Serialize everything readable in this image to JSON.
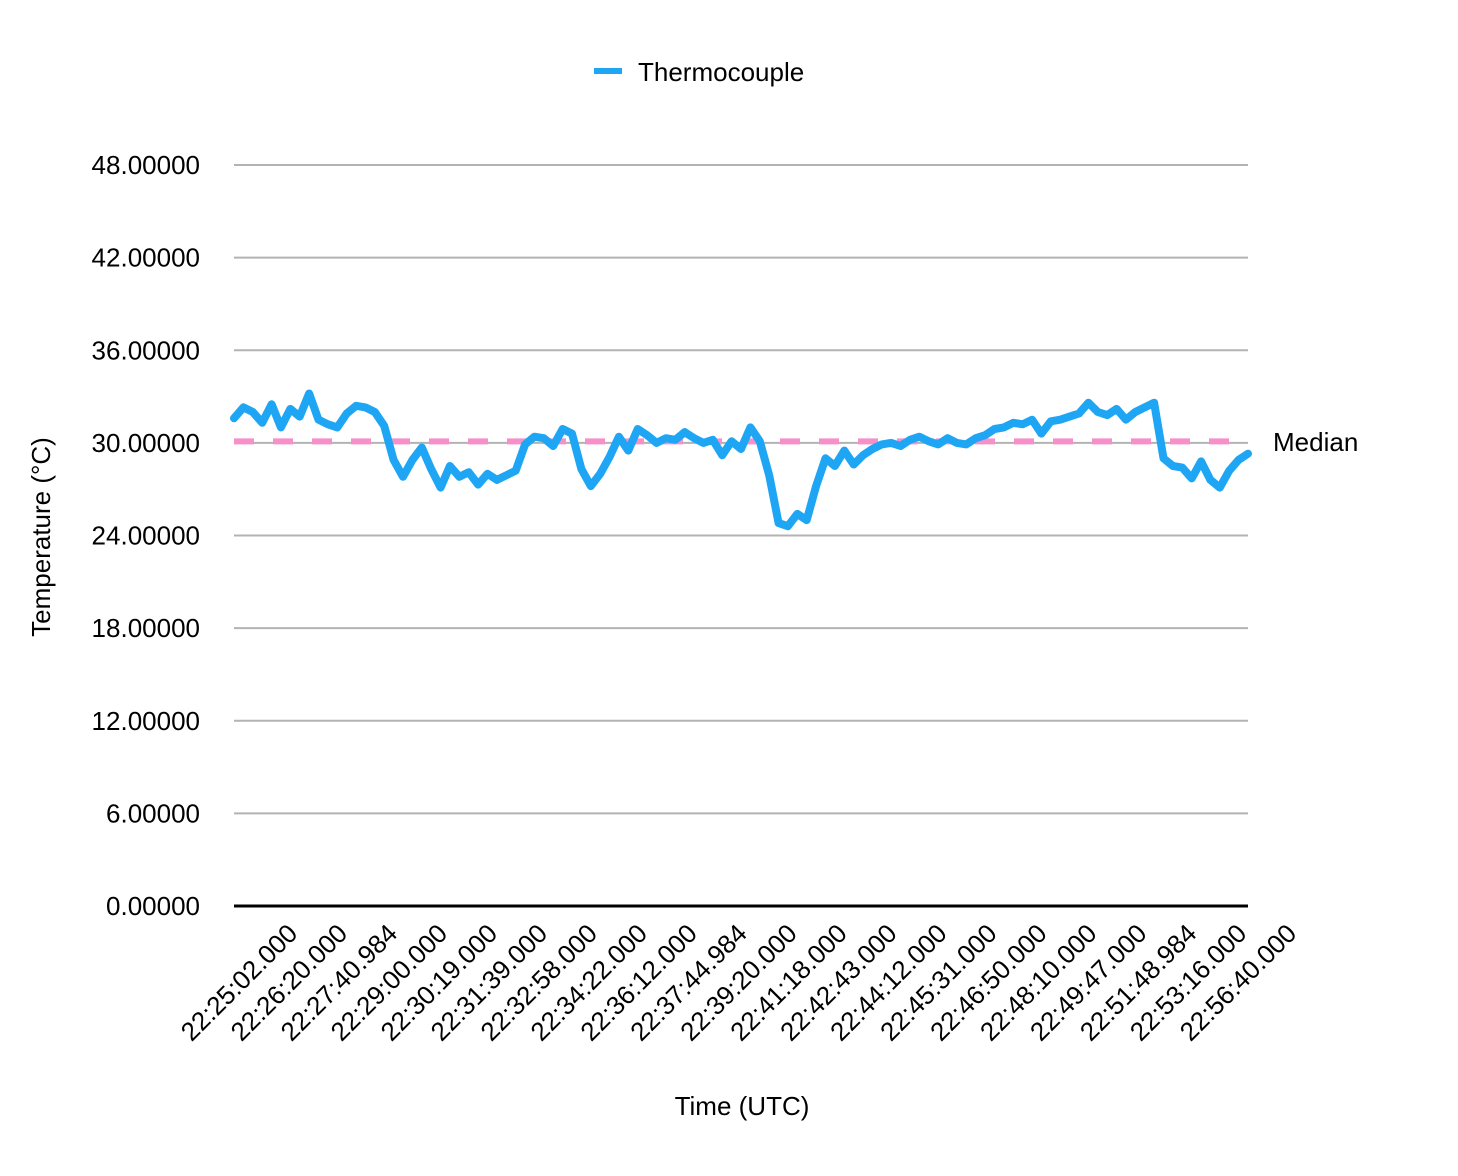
{
  "chart_data": {
    "type": "line",
    "title": "",
    "xlabel": "Time (UTC)",
    "ylabel": "Temperature (°C)",
    "ylim": [
      0,
      48
    ],
    "yticks": [
      "0.00000",
      "6.00000",
      "12.00000",
      "18.00000",
      "24.00000",
      "30.00000",
      "36.00000",
      "42.00000",
      "48.00000"
    ],
    "ytick_values": [
      0,
      6,
      12,
      18,
      24,
      30,
      36,
      42,
      48
    ],
    "xtick_labels": [
      "22:25:02.000",
      "22:26:20.000",
      "22:27:40.984",
      "22:29:00.000",
      "22:30:19.000",
      "22:31:39.000",
      "22:32:58.000",
      "22:34:22.000",
      "22:36:12.000",
      "22:37:44.984",
      "22:39:20.000",
      "22:41:18.000",
      "22:42:43.000",
      "22:44:12.000",
      "22:45:31.000",
      "22:46:50.000",
      "22:48:10.000",
      "22:49:47.000",
      "22:51:48.984",
      "22:53:16.000",
      "22:56:40.000"
    ],
    "grid": true,
    "legend": "top-center",
    "series": [
      {
        "name": "Thermocouple",
        "color": "#1EA6F5",
        "values": [
          31.6,
          32.3,
          32.0,
          31.3,
          32.5,
          31.0,
          32.2,
          31.7,
          33.2,
          31.5,
          31.2,
          31.0,
          31.9,
          32.4,
          32.3,
          32.0,
          31.1,
          28.9,
          27.8,
          28.9,
          29.7,
          28.3,
          27.1,
          28.5,
          27.8,
          28.1,
          27.3,
          28.0,
          27.6,
          27.9,
          28.2,
          29.9,
          30.4,
          30.3,
          29.8,
          30.9,
          30.6,
          28.3,
          27.2,
          28.0,
          29.1,
          30.4,
          29.5,
          30.9,
          30.5,
          30.0,
          30.3,
          30.2,
          30.7,
          30.3,
          30.0,
          30.2,
          29.2,
          30.1,
          29.6,
          31.0,
          30.1,
          27.9,
          24.8,
          24.6,
          25.4,
          25.0,
          27.2,
          29.0,
          28.5,
          29.5,
          28.6,
          29.2,
          29.6,
          29.9,
          30.0,
          29.8,
          30.2,
          30.4,
          30.1,
          29.9,
          30.3,
          30.0,
          29.9,
          30.3,
          30.5,
          30.9,
          31.0,
          31.3,
          31.2,
          31.5,
          30.6,
          31.4,
          31.5,
          31.7,
          31.9,
          32.6,
          32.0,
          31.8,
          32.2,
          31.5,
          32.0,
          32.3,
          32.6,
          29.0,
          28.5,
          28.4,
          27.7,
          28.8,
          27.6,
          27.1,
          28.2,
          28.9,
          29.3
        ]
      }
    ],
    "median": {
      "label": "Median",
      "value": 30.1,
      "color": "#F78FC9"
    }
  }
}
